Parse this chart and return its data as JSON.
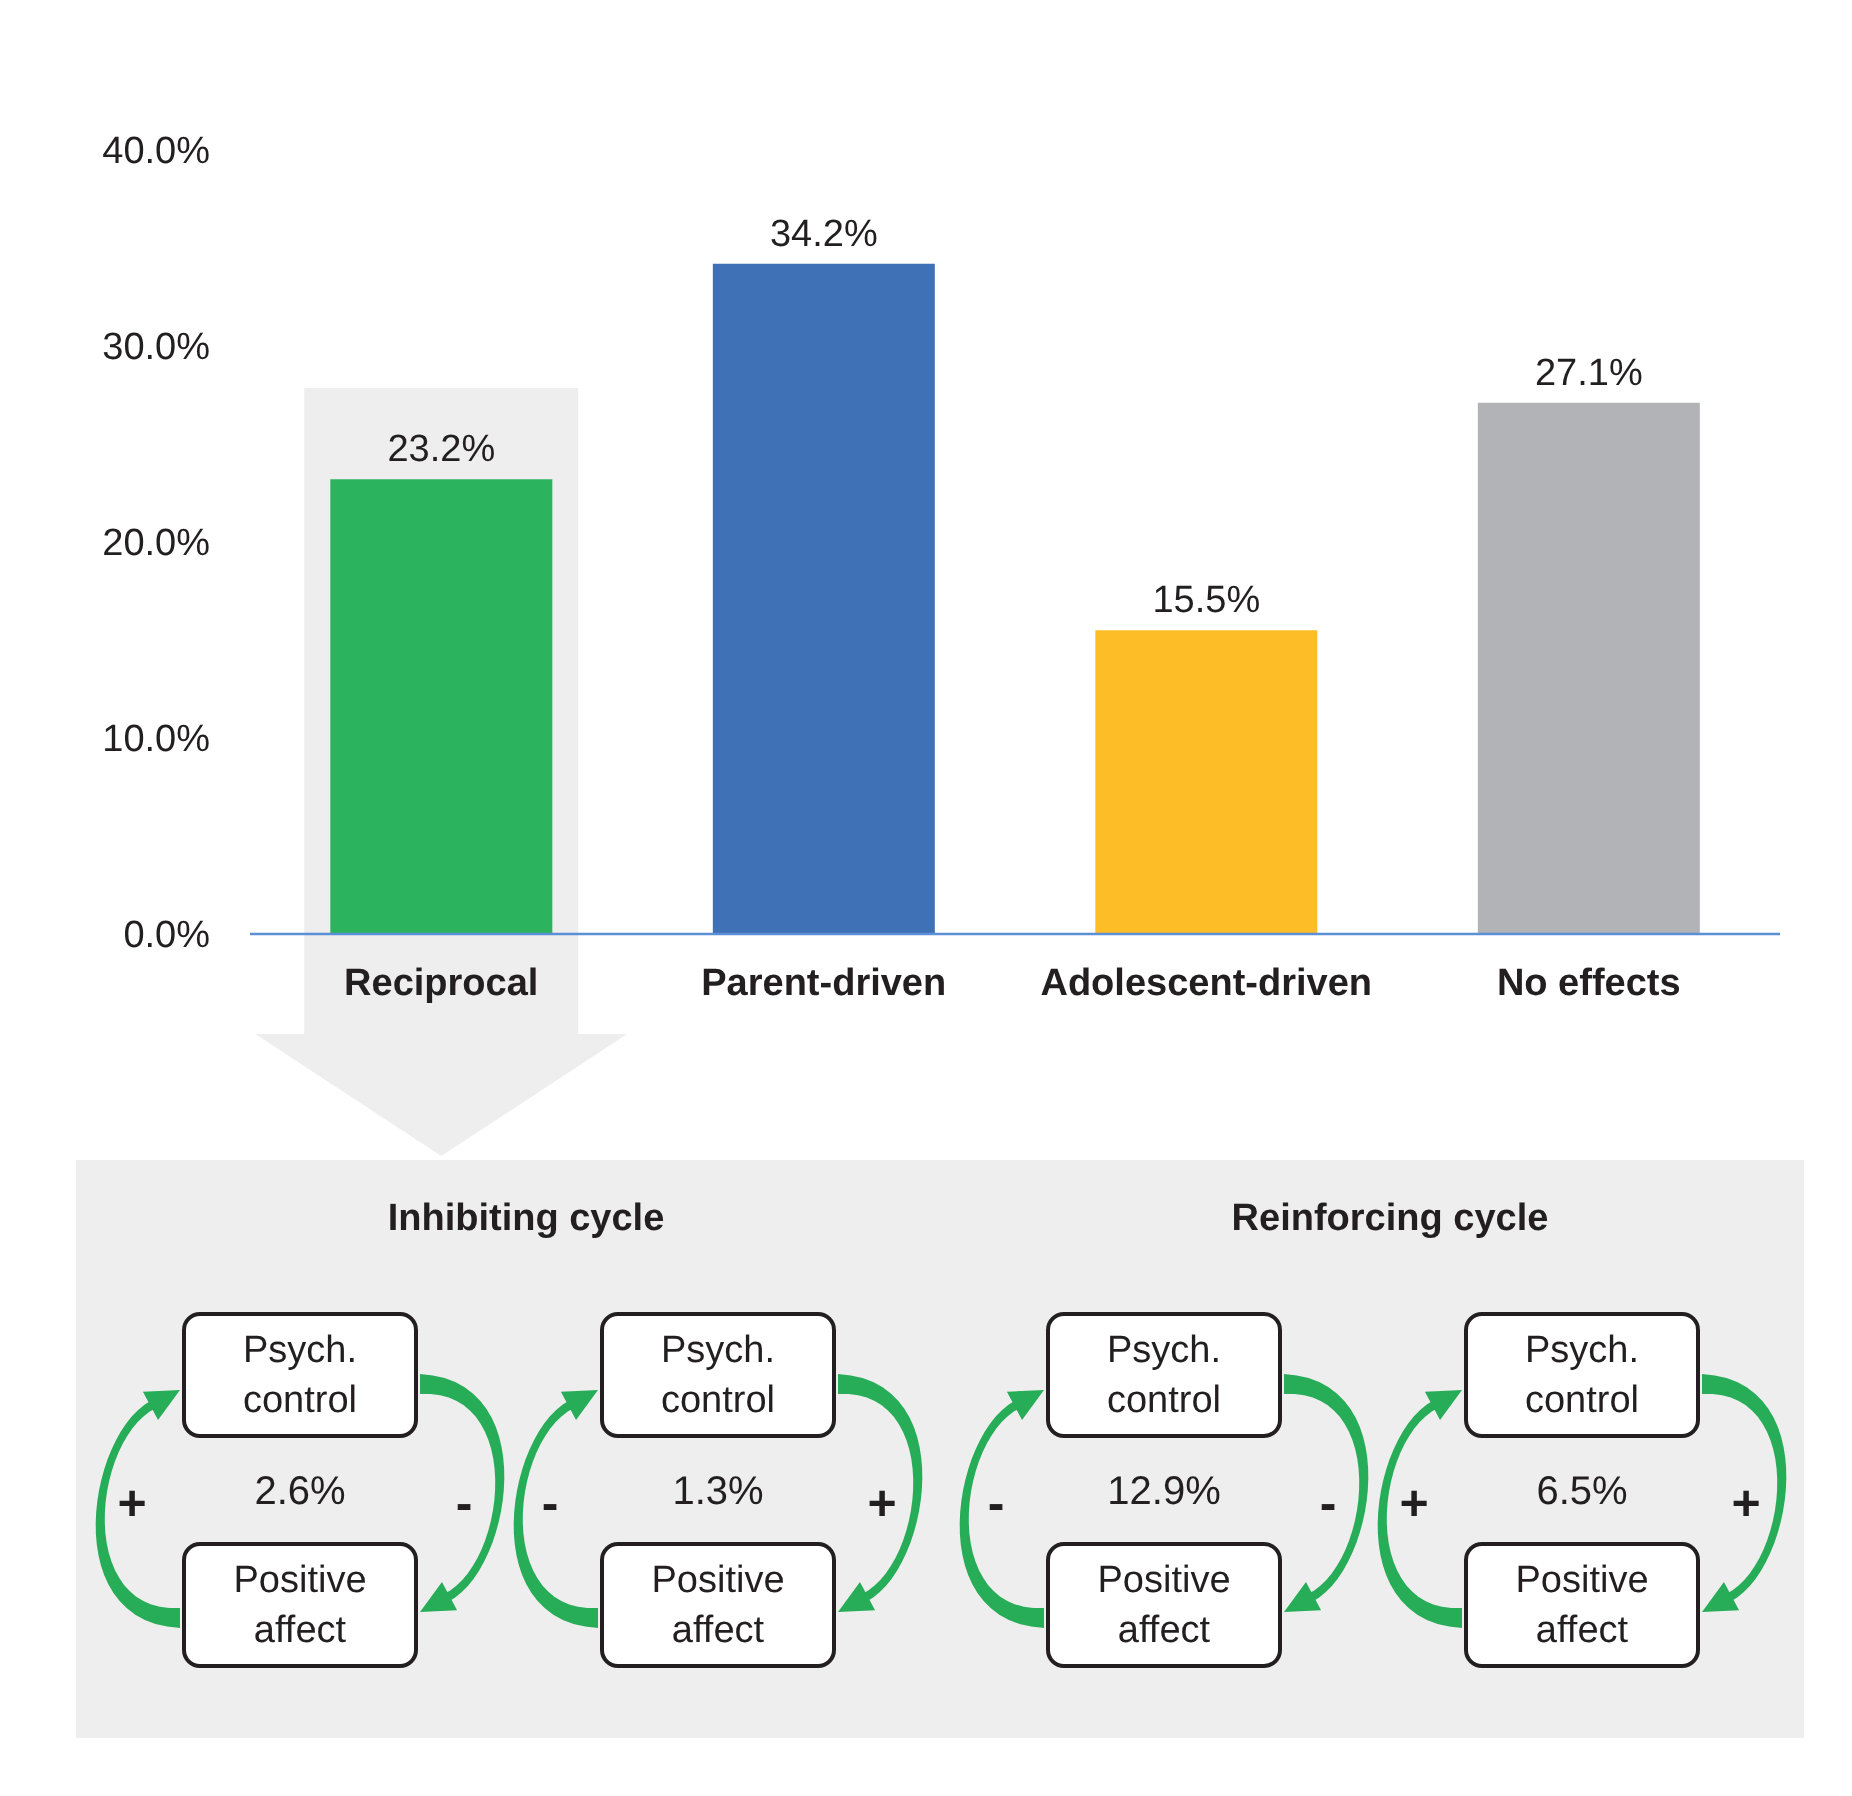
{
  "chart_data": [
    {
      "type": "bar",
      "categories": [
        "Reciprocal",
        "Parent-driven",
        "Adolescent-driven",
        "No effects"
      ],
      "values": [
        23.2,
        34.2,
        15.5,
        27.1
      ],
      "colors": [
        "#2bb35e",
        "#3f71b7",
        "#fdbd27",
        "#b2b3b6"
      ],
      "value_labels": [
        "23.2%",
        "34.2%",
        "15.5%",
        "27.1%"
      ],
      "ylim": [
        0,
        40
      ],
      "yticks": [
        {
          "value": 0,
          "label": "0.0%"
        },
        {
          "value": 10,
          "label": "10.0%"
        },
        {
          "value": 20,
          "label": "20.0%"
        },
        {
          "value": 30,
          "label": "30.0%"
        },
        {
          "value": 40,
          "label": "40.0%"
        }
      ]
    },
    {
      "type": "other",
      "title": "Inhibiting cycle",
      "annotations": [
        "Psych. control",
        "+",
        "2.6%",
        "-",
        "Positive affect",
        "Psych. control",
        "-",
        "1.3%",
        "+",
        "Positive affect"
      ]
    },
    {
      "type": "other",
      "title": "Reinforcing cycle",
      "annotations": [
        "Psych. control",
        "-",
        "12.9%",
        "-",
        "Positive affect",
        "Psych. control",
        "+",
        "6.5%",
        "+",
        "Positive affect"
      ]
    }
  ]
}
